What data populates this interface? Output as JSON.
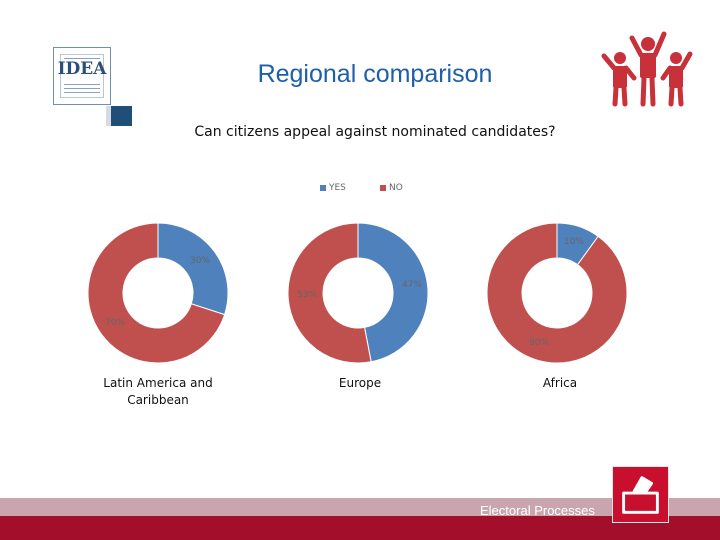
{
  "slide": {
    "title": "Regional comparison",
    "subtitle": "Can citizens appeal against nominated candidates?",
    "logo_text": "IDEA",
    "footer_text": "Electoral Processes",
    "colors": {
      "yes": "#4f81bd",
      "no": "#c0504d",
      "title": "#1f5fa8",
      "footer": "#a30f2a",
      "footer_light": "#c9a6ae",
      "accent_square": "#1f4e79"
    },
    "icons": {
      "people": "people-raising-hands-icon",
      "ballot": "ballot-box-icon"
    }
  },
  "chart_data": [
    {
      "type": "pie",
      "category": "Latin America and Caribbean",
      "labels": [
        "YES",
        "NO"
      ],
      "values": [
        30,
        70
      ],
      "value_labels": [
        "30%",
        "70%"
      ],
      "legend": "top"
    },
    {
      "type": "pie",
      "category": "Europe",
      "labels": [
        "YES",
        "NO"
      ],
      "values": [
        47,
        53
      ],
      "value_labels": [
        "47%",
        "53%"
      ],
      "legend": "top"
    },
    {
      "type": "pie",
      "category": "Africa",
      "labels": [
        "YES",
        "NO"
      ],
      "values": [
        10,
        90
      ],
      "value_labels": [
        "10%",
        "90%"
      ],
      "legend": "top"
    }
  ]
}
